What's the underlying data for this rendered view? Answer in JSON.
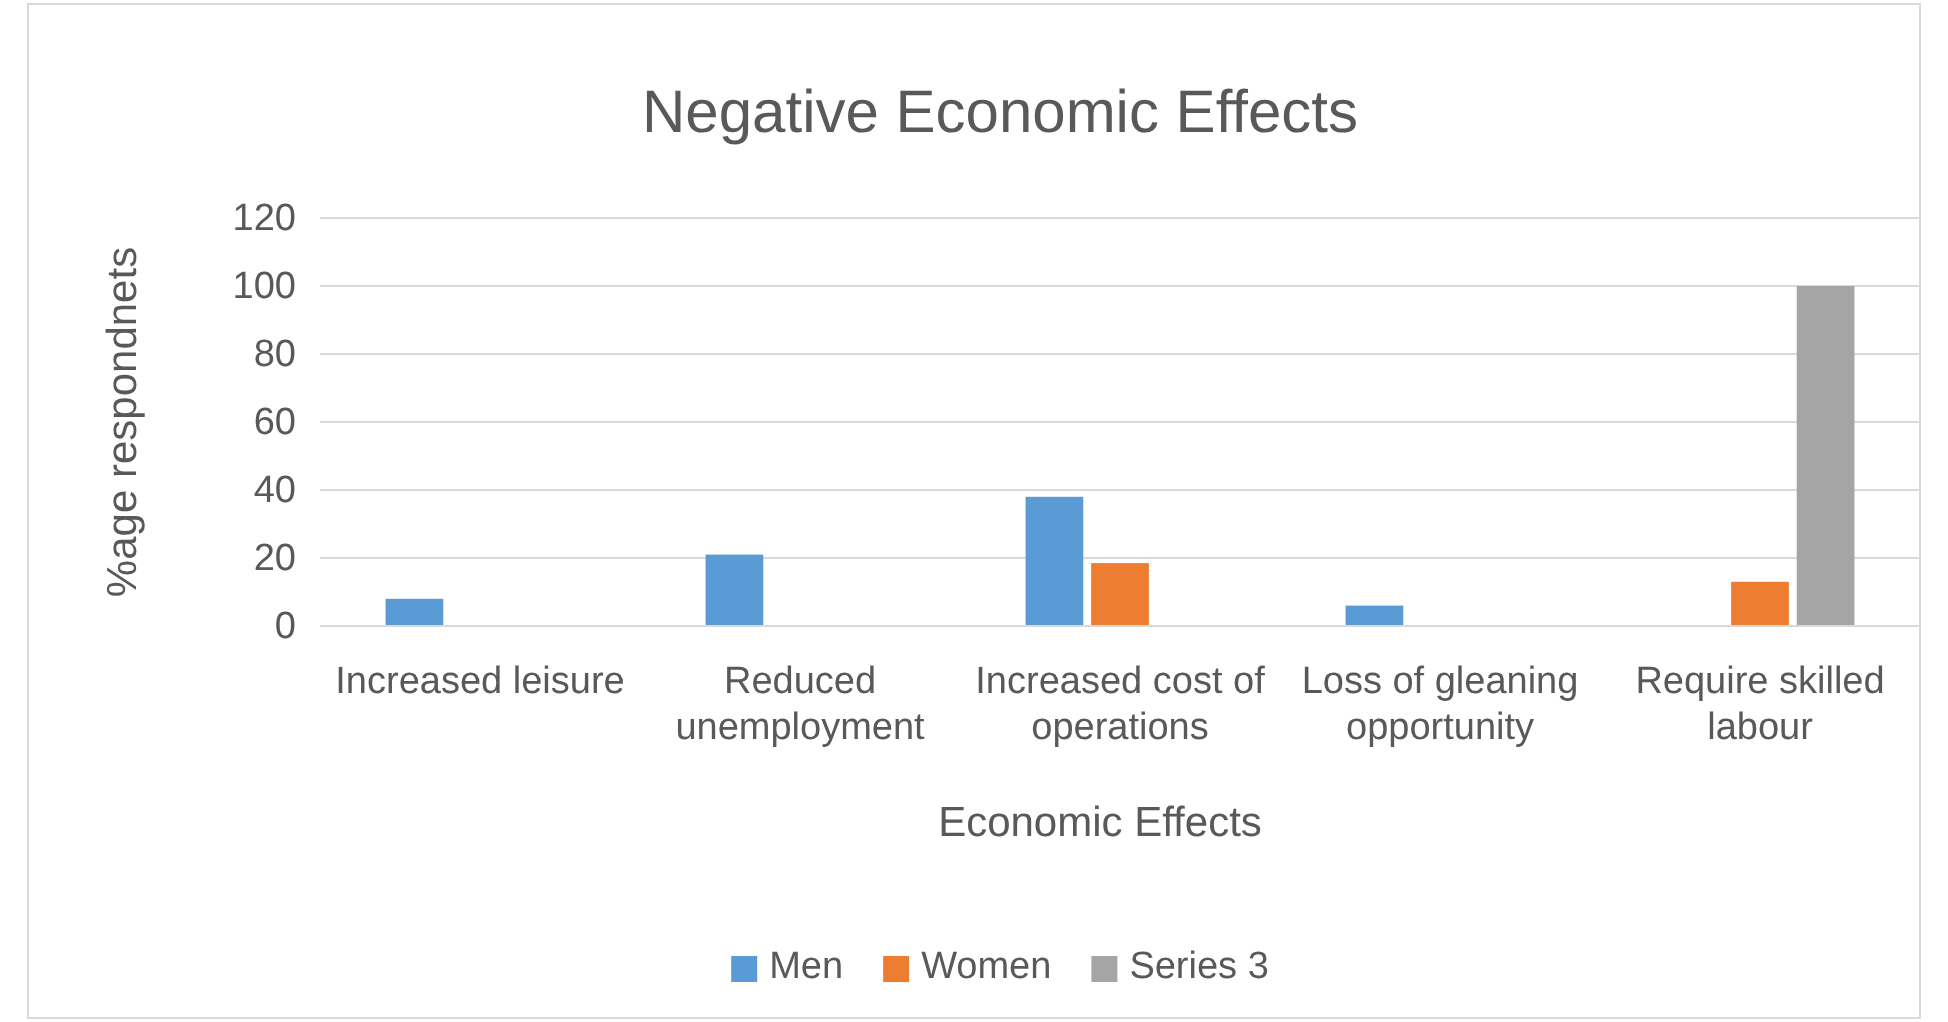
{
  "chart_data": {
    "type": "bar",
    "title": "Negative Economic Effects",
    "xlabel": "Economic Effects",
    "ylabel": "%age respondnets",
    "categories": [
      "Increased leisure",
      "Reduced unemployment",
      "Increased cost of operations",
      "Loss of gleaning opportunity",
      "Require skilled labour"
    ],
    "series": [
      {
        "name": "Men",
        "color": "#5b9bd5",
        "values": [
          8,
          21,
          38,
          6,
          null
        ]
      },
      {
        "name": "Women",
        "color": "#ed7d31",
        "values": [
          null,
          null,
          18.5,
          null,
          13
        ]
      },
      {
        "name": "Series 3",
        "color": "#a5a5a5",
        "values": [
          null,
          null,
          null,
          null,
          100
        ]
      }
    ],
    "ylim": [
      0,
      120
    ],
    "yticks": [
      0,
      20,
      40,
      60,
      80,
      100,
      120
    ],
    "grid": "y",
    "legend": "bottom"
  }
}
